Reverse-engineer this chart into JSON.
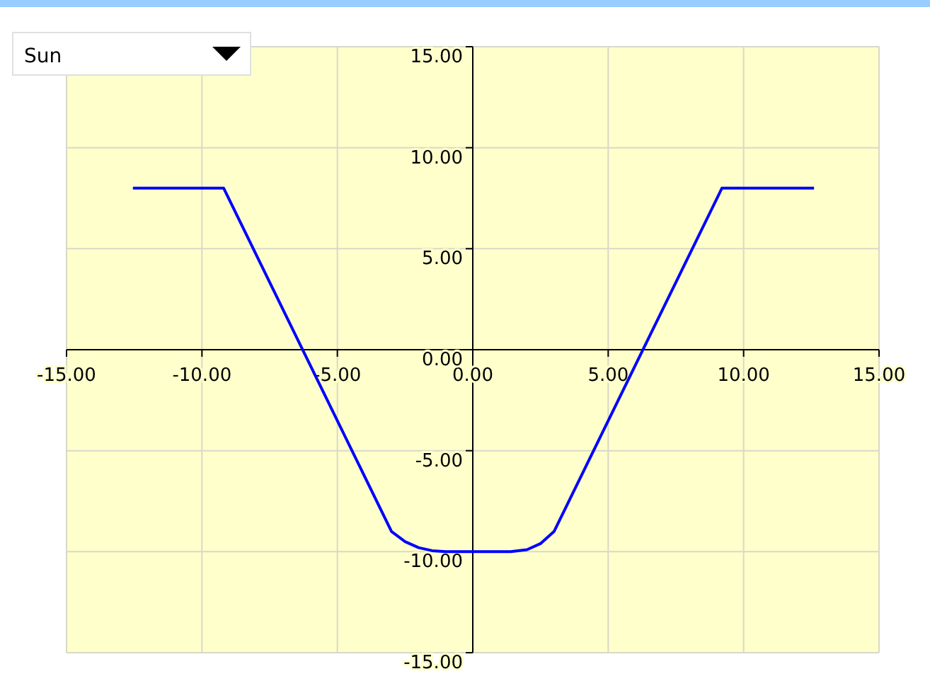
{
  "chart_data": {
    "type": "line",
    "annotations": [
      "Sun"
    ],
    "x": [
      -12.55,
      -9.2,
      -3.0,
      -2.5,
      -2.0,
      -1.5,
      -1.0,
      1.4,
      2.0,
      2.5,
      3.0,
      9.2,
      12.6
    ],
    "series": [
      {
        "color": "#0000ff",
        "values": [
          8,
          8,
          -9,
          -9.5,
          -9.8,
          -9.95,
          -10,
          -10,
          -9.9,
          -9.6,
          -9,
          8,
          8
        ]
      }
    ],
    "xlim": [
      -15,
      15
    ],
    "ylim": [
      -15,
      15
    ],
    "xticks": [
      {
        "value": -15,
        "label": "-15.00"
      },
      {
        "value": -10,
        "label": "-10.00"
      },
      {
        "value": -5,
        "label": "-5.00"
      },
      {
        "value": 0,
        "label": "0.00"
      },
      {
        "value": 5,
        "label": "5.00"
      },
      {
        "value": 10,
        "label": "10.00"
      },
      {
        "value": 15,
        "label": "15.00"
      }
    ],
    "yticks": [
      {
        "value": -15,
        "label": "-15.00"
      },
      {
        "value": -10,
        "label": "-10.00"
      },
      {
        "value": -5,
        "label": "-5.00"
      },
      {
        "value": 0,
        "label": "0.00"
      },
      {
        "value": 5,
        "label": "5.00"
      },
      {
        "value": 10,
        "label": "10.00"
      },
      {
        "value": 15,
        "label": "15.00"
      }
    ],
    "grid": true,
    "marker": "none",
    "line_style": "solid"
  }
}
